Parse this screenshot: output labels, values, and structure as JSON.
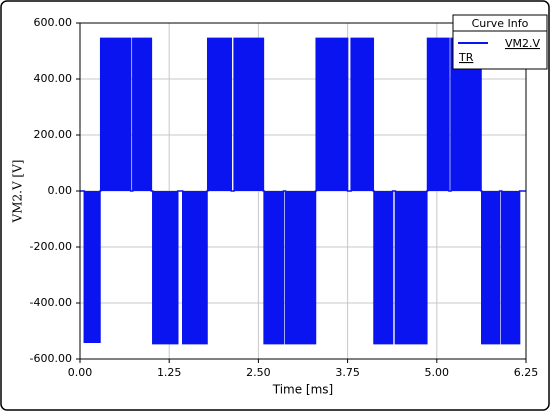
{
  "chart_data": {
    "type": "line",
    "x_label": "Time [ms]",
    "y_label": "VM2.V [V]",
    "legend_title": "Curve Info",
    "legend_note": "TR",
    "legend_position": "top-right",
    "grid": true,
    "fill_to_zero": true,
    "xlim": [
      0,
      6.25
    ],
    "ylim": [
      -600,
      600
    ],
    "xticks": [
      {
        "value": 0,
        "label": "0.00"
      },
      {
        "value": 1.25,
        "label": "1.25"
      },
      {
        "value": 2.5,
        "label": "2.50"
      },
      {
        "value": 3.75,
        "label": "3.75"
      },
      {
        "value": 5,
        "label": "5.00"
      },
      {
        "value": 6.25,
        "label": "6.25"
      }
    ],
    "yticks": [
      {
        "value": -600,
        "label": "-600.00"
      },
      {
        "value": -400,
        "label": "-400.00"
      },
      {
        "value": -200,
        "label": "-200.00"
      },
      {
        "value": 0,
        "label": "0.00"
      },
      {
        "value": 200,
        "label": "200.00"
      },
      {
        "value": 400,
        "label": "400.00"
      },
      {
        "value": 600,
        "label": "600.00"
      }
    ],
    "x": [
      0,
      0.06,
      0.06,
      0.28,
      0.28,
      0.29,
      0.29,
      0.71,
      0.71,
      0.74,
      0.74,
      1.0,
      1.0,
      1.02,
      1.02,
      1.37,
      1.37,
      1.44,
      1.44,
      1.78,
      1.78,
      1.79,
      1.79,
      2.12,
      2.12,
      2.16,
      2.16,
      2.57,
      2.57,
      2.58,
      2.58,
      2.85,
      2.85,
      2.88,
      2.88,
      3.3,
      3.3,
      3.31,
      3.31,
      3.75,
      3.75,
      3.8,
      3.8,
      4.11,
      4.11,
      4.12,
      4.12,
      4.38,
      4.38,
      4.42,
      4.42,
      4.86,
      4.86,
      4.87,
      4.87,
      5.17,
      5.17,
      5.2,
      5.2,
      5.62,
      5.62,
      5.63,
      5.63,
      5.88,
      5.88,
      5.91,
      5.91,
      6.16,
      6.16,
      6.25
    ],
    "series": [
      {
        "name": "VM2.V",
        "color": "#0a14f0",
        "values": [
          0,
          0,
          -540,
          -540,
          0,
          0,
          545,
          545,
          0,
          0,
          545,
          545,
          0,
          0,
          -545,
          -545,
          0,
          0,
          -545,
          -545,
          0,
          0,
          545,
          545,
          0,
          0,
          545,
          545,
          0,
          0,
          -545,
          -545,
          0,
          0,
          -545,
          -545,
          0,
          0,
          545,
          545,
          0,
          0,
          545,
          545,
          0,
          0,
          -545,
          -545,
          0,
          0,
          -545,
          -545,
          0,
          0,
          545,
          545,
          0,
          0,
          545,
          545,
          0,
          0,
          -545,
          -545,
          0,
          0,
          -545,
          -545,
          0,
          0
        ]
      }
    ]
  }
}
